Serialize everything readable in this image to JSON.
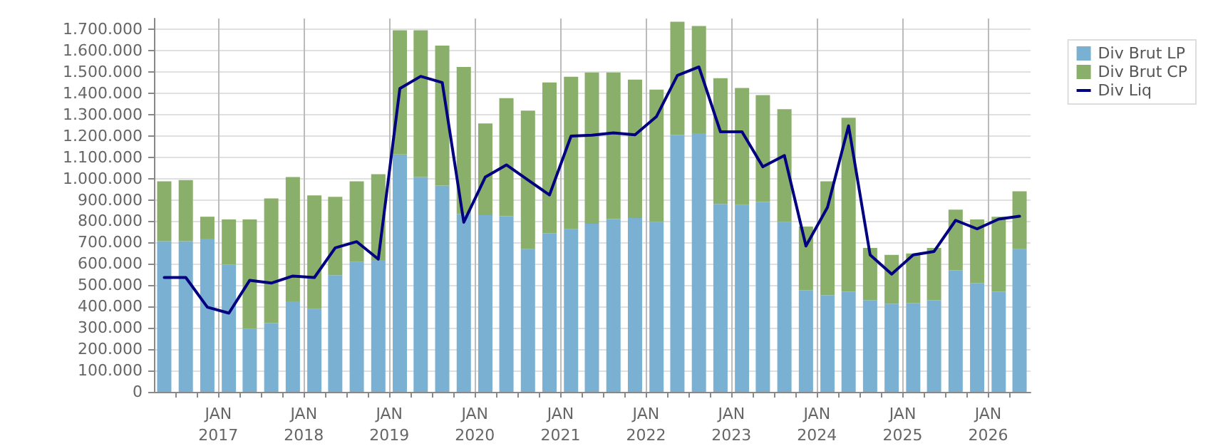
{
  "chart_data": {
    "type": "bar",
    "stacked": true,
    "legend": "top right",
    "grid": true,
    "marker": "none",
    "x": [
      "2016-05-15",
      "2016-08-15",
      "2016-11-15",
      "2017-02-15",
      "2017-05-15",
      "2017-08-15",
      "2017-11-15",
      "2018-02-15",
      "2018-05-15",
      "2018-08-15",
      "2018-11-15",
      "2019-02-15",
      "2019-05-15",
      "2019-08-15",
      "2019-11-15",
      "2020-02-15",
      "2020-05-15",
      "2020-08-15",
      "2020-11-15",
      "2021-02-15",
      "2021-05-15",
      "2021-08-15",
      "2021-11-15",
      "2022-02-15",
      "2022-05-15",
      "2022-08-15",
      "2022-11-15",
      "2023-02-15",
      "2023-05-15",
      "2023-08-15",
      "2023-11-15",
      "2024-02-15",
      "2024-05-15",
      "2024-08-15",
      "2024-11-15",
      "2025-02-15",
      "2025-05-15",
      "2025-08-15",
      "2025-11-15",
      "2026-02-15",
      "2026-05-15"
    ],
    "xlim": [
      "2016-04-01",
      "2026-07-01"
    ],
    "xticks": [
      {
        "value": "2016-07-01",
        "label": null
      },
      {
        "value": "2016-10-01",
        "label": null
      },
      {
        "value": "2017-01-01",
        "label": "JAN\n2017"
      },
      {
        "value": "2017-04-01",
        "label": null
      },
      {
        "value": "2017-07-01",
        "label": null
      },
      {
        "value": "2017-10-01",
        "label": null
      },
      {
        "value": "2018-01-01",
        "label": "JAN\n2018"
      },
      {
        "value": "2018-04-01",
        "label": null
      },
      {
        "value": "2018-07-01",
        "label": null
      },
      {
        "value": "2018-10-01",
        "label": null
      },
      {
        "value": "2019-01-01",
        "label": "JAN\n2019"
      },
      {
        "value": "2019-04-01",
        "label": null
      },
      {
        "value": "2019-07-01",
        "label": null
      },
      {
        "value": "2019-10-01",
        "label": null
      },
      {
        "value": "2020-01-01",
        "label": "JAN\n2020"
      },
      {
        "value": "2020-04-01",
        "label": null
      },
      {
        "value": "2020-07-01",
        "label": null
      },
      {
        "value": "2020-10-01",
        "label": null
      },
      {
        "value": "2021-01-01",
        "label": "JAN\n2021"
      },
      {
        "value": "2021-04-01",
        "label": null
      },
      {
        "value": "2021-07-01",
        "label": null
      },
      {
        "value": "2021-10-01",
        "label": null
      },
      {
        "value": "2022-01-01",
        "label": "JAN\n2022"
      },
      {
        "value": "2022-04-01",
        "label": null
      },
      {
        "value": "2022-07-01",
        "label": null
      },
      {
        "value": "2022-10-01",
        "label": null
      },
      {
        "value": "2023-01-01",
        "label": "JAN\n2023"
      },
      {
        "value": "2023-04-01",
        "label": null
      },
      {
        "value": "2023-07-01",
        "label": null
      },
      {
        "value": "2023-10-01",
        "label": null
      },
      {
        "value": "2024-01-01",
        "label": "JAN\n2024"
      },
      {
        "value": "2024-04-01",
        "label": null
      },
      {
        "value": "2024-07-01",
        "label": null
      },
      {
        "value": "2024-10-01",
        "label": null
      },
      {
        "value": "2025-01-01",
        "label": "JAN\n2025"
      },
      {
        "value": "2025-04-01",
        "label": null
      },
      {
        "value": "2025-07-01",
        "label": null
      },
      {
        "value": "2025-10-01",
        "label": null
      },
      {
        "value": "2026-01-01",
        "label": "JAN\n2026"
      },
      {
        "value": "2026-04-01",
        "label": null
      }
    ],
    "ylim": [
      0,
      1750000
    ],
    "yticks": [
      0,
      {
        "value": 100000,
        "label": "100.000"
      },
      {
        "value": 200000,
        "label": "200.000"
      },
      {
        "value": 300000,
        "label": "300.000"
      },
      {
        "value": 400000,
        "label": "400.000"
      },
      {
        "value": 500000,
        "label": "500.000"
      },
      {
        "value": 600000,
        "label": "600.000"
      },
      {
        "value": 700000,
        "label": "700.000"
      },
      {
        "value": 800000,
        "label": "800.000"
      },
      {
        "value": 900000,
        "label": "900.000"
      },
      {
        "value": 1000000,
        "label": "1.000.000"
      },
      {
        "value": 1100000,
        "label": "1.100.000"
      },
      {
        "value": 1200000,
        "label": "1.200.000"
      },
      {
        "value": 1300000,
        "label": "1.300.000"
      },
      {
        "value": 1400000,
        "label": "1.400.000"
      },
      {
        "value": 1500000,
        "label": "1.500.000"
      },
      {
        "value": 1600000,
        "label": "1.600.000"
      },
      {
        "value": 1700000,
        "label": "1.700.000"
      }
    ],
    "series": [
      {
        "name": "Div Brut LP",
        "color": "#7ab0d2",
        "values": [
          706000,
          706000,
          715000,
          596000,
          296000,
          322000,
          424000,
          388000,
          547000,
          609000,
          618000,
          1113000,
          1007000,
          967000,
          834000,
          828000,
          823000,
          669000,
          744000,
          762000,
          788000,
          810000,
          815000,
          797000,
          1205000,
          1212000,
          881000,
          876000,
          890000,
          797000,
          477000,
          453000,
          470000,
          430000,
          413000,
          417000,
          430000,
          570000,
          510000,
          470000,
          669000
        ]
      },
      {
        "name": "Div Brut CP",
        "color": "#8aaf6a",
        "values": [
          281000,
          287000,
          106000,
          212000,
          512000,
          585000,
          583000,
          533000,
          367000,
          378000,
          402000,
          582000,
          688000,
          656000,
          689000,
          430000,
          554000,
          649000,
          706000,
          715000,
          709000,
          687000,
          649000,
          620000,
          530000,
          503000,
          589000,
          548000,
          501000,
          528000,
          298000,
          534000,
          815000,
          245000,
          229000,
          232000,
          245000,
          284000,
          298000,
          351000,
          271000
        ]
      },
      {
        "name": "Div Liq",
        "type": "line",
        "color": "#000080",
        "line_style": "solid",
        "values": [
          536000,
          536000,
          397000,
          369000,
          523000,
          510000,
          543000,
          536000,
          675000,
          704000,
          622000,
          1422000,
          1479000,
          1450000,
          795000,
          1007000,
          1064000,
          993000,
          923000,
          1199000,
          1203000,
          1214000,
          1205000,
          1291000,
          1483000,
          1523000,
          1219000,
          1219000,
          1055000,
          1108000,
          684000,
          865000,
          1247000,
          642000,
          552000,
          642000,
          658000,
          804000,
          764000,
          810000,
          823000
        ]
      }
    ]
  }
}
